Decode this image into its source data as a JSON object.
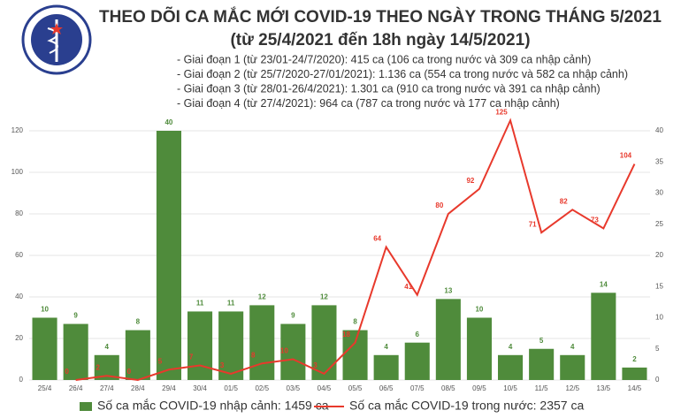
{
  "chart_data": {
    "type": "bar_line",
    "title": "THEO DÕI CA MẮC MỚI COVID-19 THEO NGÀY TRONG THÁNG 5/2021",
    "subtitle": "(từ 25/4/2021 đến 18h ngày 14/5/2021)",
    "notes": [
      "- Giai đoạn 1 (từ 23/01-24/7/2020): 415 ca (106 ca trong nước và 309 ca nhập cảnh)",
      "- Giai đoạn 2 (từ 25/7/2020-27/01/2021): 1.136 ca (554 ca trong nước và 582 ca nhập cảnh)",
      "- Giai đoạn 3 (từ 28/01-26/4/2021): 1.301 ca (910 ca trong nước và 391 ca nhập cảnh)",
      "- Giai đoạn 4 (từ 27/4/2021): 964 ca (787 ca trong nước và 177 ca nhập cảnh)"
    ],
    "categories": [
      "25/4",
      "26/4",
      "27/4",
      "28/4",
      "29/4",
      "30/4",
      "01/5",
      "02/5",
      "03/5",
      "04/5",
      "05/5",
      "06/5",
      "07/5",
      "08/5",
      "09/5",
      "10/5",
      "11/5",
      "12/5",
      "13/5",
      "14/5"
    ],
    "series": [
      {
        "name": "Số ca mắc COVID-19 nhập cảnh: 1459 ca",
        "color": "#4f8b3b",
        "type": "bar",
        "axis": "y2",
        "values": [
          10,
          9,
          4,
          8,
          40,
          11,
          11,
          12,
          9,
          12,
          8,
          4,
          6,
          13,
          10,
          4,
          5,
          4,
          14,
          2
        ]
      },
      {
        "name": "Số ca mắc COVID-19 trong nước: 2357 ca",
        "color": "#e8392c",
        "type": "line",
        "axis": "y",
        "values": [
          null,
          0,
          2,
          0,
          5,
          7,
          3,
          8,
          10,
          3,
          18,
          64,
          41,
          80,
          92,
          125,
          71,
          82,
          73,
          104
        ]
      }
    ],
    "ylim": [
      0,
      120
    ],
    "yticks": [
      0,
      20,
      40,
      60,
      80,
      100,
      120
    ],
    "y2lim": [
      0,
      40
    ],
    "y2ticks": [
      0,
      5,
      10,
      15,
      20,
      25,
      30,
      35,
      40
    ],
    "grid": true
  }
}
